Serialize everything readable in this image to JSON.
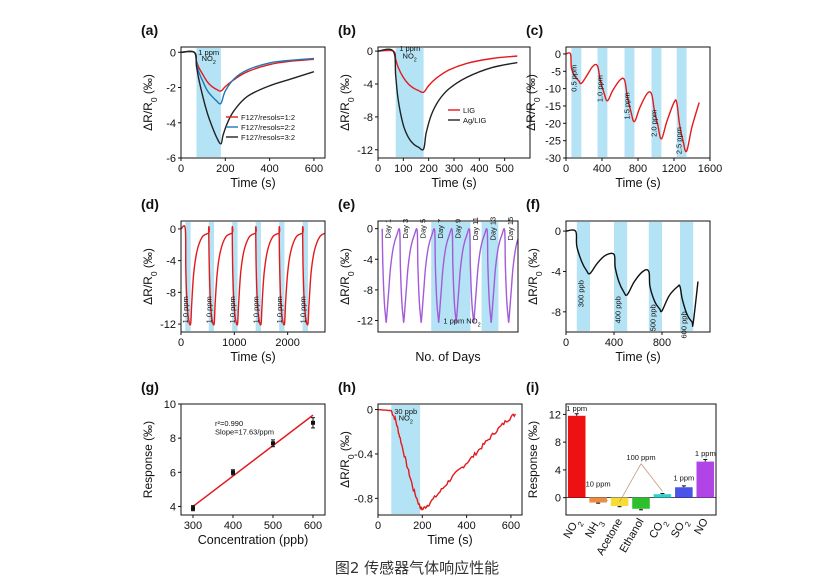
{
  "caption": "图2 传感器气体响应性能",
  "chart_data": [
    {
      "id": "a",
      "panel": "(a)",
      "type": "line",
      "xlabel": "Time (s)",
      "ylabel": "ΔR/R0 (‰)",
      "xlim": [
        0,
        650
      ],
      "ylim": [
        -6,
        0.3
      ],
      "xticks": [
        0,
        200,
        400,
        600
      ],
      "yticks": [
        -6,
        -4,
        -2,
        0
      ],
      "shades": [
        [
          70,
          180
        ]
      ],
      "annotations": [
        {
          "text": "1 ppm",
          "x": 125,
          "y": -0.15
        },
        {
          "text": "NO2",
          "x": 125,
          "y": -0.5
        }
      ],
      "legend": [
        "F127/resols=1:2",
        "F127/resols=2:2",
        "F127/resols=3:2"
      ],
      "legend_position": "lower-right",
      "series": [
        {
          "name": "F127/resols=1:2",
          "color": "#e31a1c",
          "x": [
            0,
            60,
            70,
            80,
            100,
            120,
            140,
            160,
            180,
            200,
            240,
            300,
            400,
            500,
            600
          ],
          "y": [
            0,
            0,
            -0.5,
            -0.85,
            -1.3,
            -1.7,
            -1.95,
            -2.1,
            -2.2,
            -1.95,
            -1.55,
            -1.1,
            -0.7,
            -0.5,
            -0.4
          ]
        },
        {
          "name": "F127/resols=2:2",
          "color": "#1f78b4",
          "x": [
            0,
            60,
            70,
            80,
            100,
            120,
            140,
            160,
            180,
            200,
            240,
            300,
            400,
            500,
            600
          ],
          "y": [
            0,
            0,
            -0.6,
            -1.1,
            -1.7,
            -2.2,
            -2.5,
            -2.75,
            -2.9,
            -2.2,
            -1.5,
            -1.0,
            -0.6,
            -0.45,
            -0.35
          ]
        },
        {
          "name": "F127/resols=3:2",
          "color": "#222222",
          "x": [
            0,
            60,
            70,
            80,
            100,
            120,
            140,
            160,
            180,
            190,
            210,
            240,
            300,
            400,
            500,
            600
          ],
          "y": [
            0,
            0,
            -0.8,
            -1.5,
            -2.6,
            -3.5,
            -4.2,
            -4.8,
            -5.2,
            -4.7,
            -4.0,
            -3.3,
            -2.5,
            -1.9,
            -1.5,
            -1.1
          ]
        }
      ]
    },
    {
      "id": "b",
      "panel": "(b)",
      "type": "line",
      "xlabel": "Time (s)",
      "ylabel": "ΔR/R0 (‰)",
      "xlim": [
        0,
        600
      ],
      "ylim": [
        -13,
        0.5
      ],
      "xticks": [
        0,
        100,
        200,
        300,
        400,
        500
      ],
      "yticks": [
        -12,
        -8,
        -4,
        0
      ],
      "shades": [
        [
          70,
          180
        ]
      ],
      "annotations": [
        {
          "text": "1 ppm",
          "x": 125,
          "y": 0
        },
        {
          "text": "NO2",
          "x": 125,
          "y": -0.9
        }
      ],
      "legend": [
        "LIG",
        "Ag/LIG"
      ],
      "legend_position": "center-right",
      "series": [
        {
          "name": "LIG",
          "color": "#e31a1c",
          "x": [
            0,
            60,
            70,
            80,
            100,
            120,
            140,
            160,
            180,
            200,
            230,
            280,
            350,
            450,
            550
          ],
          "y": [
            0,
            0,
            -1.0,
            -2.0,
            -3.2,
            -4.0,
            -4.5,
            -4.8,
            -5.0,
            -4.2,
            -3.3,
            -2.3,
            -1.5,
            -0.9,
            -0.6
          ]
        },
        {
          "name": "Ag/LIG",
          "color": "#222222",
          "x": [
            0,
            60,
            70,
            80,
            100,
            120,
            140,
            160,
            180,
            190,
            210,
            240,
            280,
            350,
            450,
            550
          ],
          "y": [
            0,
            0,
            -3.0,
            -6.0,
            -9.0,
            -10.5,
            -11.3,
            -11.7,
            -11.9,
            -10.0,
            -7.8,
            -6.0,
            -4.6,
            -3.2,
            -2.0,
            -1.4
          ]
        }
      ]
    },
    {
      "id": "c",
      "panel": "(c)",
      "type": "line",
      "xlabel": "Time (s)",
      "ylabel": "ΔR/R0 (‰)",
      "xlim": [
        0,
        1600
      ],
      "ylim": [
        -30,
        2
      ],
      "xticks": [
        0,
        400,
        800,
        1200,
        1600
      ],
      "yticks": [
        -30,
        -25,
        -20,
        -15,
        -10,
        -5,
        0
      ],
      "shades": [
        [
          60,
          170
        ],
        [
          350,
          460
        ],
        [
          650,
          760
        ],
        [
          950,
          1060
        ],
        [
          1230,
          1340
        ]
      ],
      "annotations": [
        {
          "text": "0.5 ppm",
          "x": 115,
          "y": -7,
          "rotate": -90
        },
        {
          "text": "1.0 ppm",
          "x": 405,
          "y": -10,
          "rotate": -90
        },
        {
          "text": "1.5 ppm",
          "x": 705,
          "y": -15,
          "rotate": -90
        },
        {
          "text": "2.0 ppm",
          "x": 1005,
          "y": -20,
          "rotate": -90
        },
        {
          "text": "2.5 ppm",
          "x": 1285,
          "y": -25,
          "rotate": -90
        }
      ],
      "series": [
        {
          "name": "response",
          "color": "#e31a1c",
          "x": [
            0,
            50,
            60,
            100,
            140,
            170,
            230,
            300,
            350,
            380,
            420,
            460,
            520,
            600,
            650,
            680,
            720,
            760,
            820,
            900,
            950,
            980,
            1020,
            1060,
            1120,
            1200,
            1230,
            1260,
            1300,
            1340,
            1400,
            1480
          ],
          "y": [
            0,
            0,
            -4,
            -6.5,
            -7.7,
            -8.5,
            -6.3,
            -3.5,
            -3.5,
            -7.5,
            -11,
            -13.5,
            -10.5,
            -7.5,
            -7.5,
            -12,
            -16.5,
            -19.5,
            -15.5,
            -11.5,
            -11.5,
            -16,
            -20.5,
            -24.5,
            -19.5,
            -14,
            -14,
            -20,
            -25,
            -28,
            -21,
            -14
          ]
        }
      ]
    },
    {
      "id": "d",
      "panel": "(d)",
      "type": "line",
      "xlabel": "Time (s)",
      "ylabel": "ΔR/R0 (‰)",
      "xlim": [
        0,
        2700
      ],
      "ylim": [
        -13,
        1
      ],
      "xticks": [
        0,
        1000,
        2000
      ],
      "yticks": [
        -12,
        -8,
        -4,
        0
      ],
      "shades": [
        [
          80,
          180
        ],
        [
          520,
          620
        ],
        [
          960,
          1060
        ],
        [
          1400,
          1500
        ],
        [
          1840,
          1940
        ],
        [
          2280,
          2380
        ]
      ],
      "annotations": [
        {
          "text": "1.0 ppm",
          "x": 130,
          "y": -10.2,
          "rotate": -90
        },
        {
          "text": "1.0 ppm",
          "x": 570,
          "y": -10.2,
          "rotate": -90
        },
        {
          "text": "1.0 ppm",
          "x": 1010,
          "y": -10.2,
          "rotate": -90
        },
        {
          "text": "1.0 ppm",
          "x": 1450,
          "y": -10.2,
          "rotate": -90
        },
        {
          "text": "1.0 ppm",
          "x": 1890,
          "y": -10.2,
          "rotate": -90
        },
        {
          "text": "1.0 ppm",
          "x": 2330,
          "y": -10.2,
          "rotate": -90
        }
      ],
      "series": [
        {
          "name": "response",
          "color": "#e31a1c",
          "pattern": "repeat",
          "cycles": 6,
          "period": 440,
          "start": 80,
          "x": [
            0,
            80,
            90,
            110,
            140,
            180,
            200,
            240,
            300,
            400,
            520
          ],
          "y": [
            0,
            0,
            -5,
            -9,
            -11.3,
            -12,
            -9.5,
            -5.5,
            -2.8,
            -1.0,
            -0.5
          ]
        }
      ]
    },
    {
      "id": "e",
      "panel": "(e)",
      "type": "line",
      "xlabel": "No. of Days",
      "ylabel": "ΔR/R0 (‰)",
      "xlim": [
        0,
        1
      ],
      "ylim": [
        -13.5,
        1
      ],
      "xticks": [],
      "yticks": [
        -12,
        -8,
        -4,
        0
      ],
      "annotations": [
        {
          "text": "Day 1",
          "x": 0.09,
          "y": 0,
          "rotate": -90
        },
        {
          "text": "Day 3",
          "x": 0.215,
          "y": 0,
          "rotate": -90
        },
        {
          "text": "Day 5",
          "x": 0.34,
          "y": 0,
          "rotate": -90
        },
        {
          "text": "Day 7",
          "x": 0.465,
          "y": 0,
          "rotate": -90
        },
        {
          "text": "Day 9",
          "x": 0.59,
          "y": 0,
          "rotate": -90
        },
        {
          "text": "Day 11",
          "x": 0.715,
          "y": 0,
          "rotate": -90
        },
        {
          "text": "Day 13",
          "x": 0.84,
          "y": 0,
          "rotate": -90
        },
        {
          "text": "Day 15",
          "x": 0.965,
          "y": 0,
          "rotate": -90
        },
        {
          "text": "1 ppm NO2",
          "x": 0.6,
          "y": -12.4
        }
      ],
      "shades": [
        [
          0.38,
          0.52
        ],
        [
          0.52,
          0.66
        ],
        [
          0.74,
          0.86
        ]
      ],
      "series": [
        {
          "name": "response",
          "color": "#a35bd8",
          "pattern": "repeat",
          "cycles": 8,
          "period": 0.125,
          "start": 0.03,
          "x": [
            0.03,
            0.035,
            0.045,
            0.055,
            0.06,
            0.075,
            0.09,
            0.11,
            0.135,
            0.155
          ],
          "y": [
            0,
            -5,
            -9.5,
            -11.6,
            -12,
            -8.5,
            -5,
            -2.4,
            -0.8,
            -0.3
          ]
        }
      ]
    },
    {
      "id": "f",
      "panel": "(f)",
      "type": "line",
      "xlabel": "Time (s)",
      "ylabel": "ΔR/R0 (‰)",
      "xlim": [
        0,
        1200
      ],
      "ylim": [
        -10,
        1
      ],
      "xticks": [
        0,
        400,
        800
      ],
      "yticks": [
        -8,
        -4,
        0
      ],
      "shades": [
        [
          90,
          200
        ],
        [
          400,
          510
        ],
        [
          690,
          800
        ],
        [
          950,
          1060
        ]
      ],
      "annotations": [
        {
          "text": "300 ppb",
          "x": 145,
          "y": -6.2,
          "rotate": -90
        },
        {
          "text": "400 ppb",
          "x": 455,
          "y": -7.8,
          "rotate": -90
        },
        {
          "text": "500 ppb",
          "x": 745,
          "y": -8.6,
          "rotate": -90
        },
        {
          "text": "600 ppb",
          "x": 1005,
          "y": -9.3,
          "rotate": -90
        }
      ],
      "series": [
        {
          "name": "response",
          "color": "#111111",
          "x": [
            0,
            80,
            90,
            130,
            170,
            200,
            260,
            330,
            400,
            410,
            440,
            480,
            510,
            570,
            640,
            690,
            700,
            740,
            780,
            800,
            860,
            930,
            950,
            970,
            1010,
            1050,
            1060,
            1100
          ],
          "y": [
            0,
            0,
            -1.5,
            -3.0,
            -3.9,
            -4.2,
            -3.2,
            -2.4,
            -2.3,
            -3.6,
            -5.0,
            -6.0,
            -6.3,
            -5.0,
            -4.0,
            -4.0,
            -5.5,
            -7.0,
            -7.7,
            -7.9,
            -6.4,
            -5.5,
            -5.5,
            -6.8,
            -8.3,
            -9.0,
            -9.1,
            -5.0
          ]
        }
      ]
    },
    {
      "id": "g",
      "panel": "(g)",
      "type": "scatter",
      "xlabel": "Concentration (ppb)",
      "ylabel": "Response (‰)",
      "xlim": [
        270,
        630
      ],
      "ylim": [
        3.5,
        10
      ],
      "xticks": [
        300,
        400,
        500,
        600
      ],
      "yticks": [
        4,
        6,
        8,
        10
      ],
      "points": [
        {
          "x": 300,
          "y": 3.9,
          "err": 0.15
        },
        {
          "x": 400,
          "y": 6.0,
          "err": 0.15
        },
        {
          "x": 500,
          "y": 7.7,
          "err": 0.2
        },
        {
          "x": 600,
          "y": 8.9,
          "err": 0.3
        }
      ],
      "fit": {
        "x": [
          300,
          600
        ],
        "y": [
          4.0,
          9.35
        ],
        "color": "#e31a1c"
      },
      "annotations": [
        {
          "text": "r²=0.990",
          "x": 355,
          "y": 8.7
        },
        {
          "text": "Slope=17.63/ppm",
          "x": 355,
          "y": 8.2
        }
      ]
    },
    {
      "id": "h",
      "panel": "(h)",
      "type": "line",
      "xlabel": "Time (s)",
      "ylabel": "ΔR/R0 (‰)",
      "xlim": [
        0,
        650
      ],
      "ylim": [
        -0.95,
        0.05
      ],
      "xticks": [
        0,
        200,
        400,
        600
      ],
      "yticks": [
        -0.8,
        -0.4,
        0
      ],
      "shades": [
        [
          60,
          190
        ]
      ],
      "annotations": [
        {
          "text": "30 ppb",
          "x": 125,
          "y": -0.04
        },
        {
          "text": "NO2",
          "x": 125,
          "y": -0.1
        }
      ],
      "series": [
        {
          "name": "response",
          "color": "#e31a1c",
          "noise": true,
          "x": [
            0,
            60,
            80,
            100,
            130,
            160,
            190,
            200,
            230,
            280,
            330,
            380,
            430,
            480,
            530,
            580,
            620
          ],
          "y": [
            0,
            -0.01,
            -0.1,
            -0.26,
            -0.5,
            -0.72,
            -0.88,
            -0.9,
            -0.85,
            -0.74,
            -0.62,
            -0.52,
            -0.42,
            -0.31,
            -0.2,
            -0.1,
            -0.04
          ]
        }
      ]
    },
    {
      "id": "i",
      "panel": "(i)",
      "type": "bar",
      "xlabel": "",
      "ylabel": "Response (‰)",
      "ylim": [
        -2.5,
        13.5
      ],
      "yticks": [
        0,
        4,
        8,
        12
      ],
      "categories": [
        "NO2",
        "NH3",
        "Acetone",
        "Ethanol",
        "CO2",
        "SO2",
        "NO"
      ],
      "values": [
        11.8,
        -0.7,
        -1.2,
        -1.6,
        0.5,
        1.5,
        5.2
      ],
      "errors": [
        0.3,
        0.1,
        0.1,
        0.15,
        0.1,
        0.2,
        0.3
      ],
      "colors": [
        "#ee1111",
        "#f08a3c",
        "#f7dc33",
        "#2cc02c",
        "#33d0d0",
        "#4a55e8",
        "#b044e6"
      ],
      "bar_labels": [
        {
          "text": "1 ppm",
          "x": 0,
          "y": 12.5
        },
        {
          "text": "10 ppm",
          "x": 1,
          "y": 1.6
        },
        {
          "text": "100 ppm",
          "x": 3,
          "y": 5.4
        },
        {
          "text": "1 ppm",
          "x": 5,
          "y": 2.5
        },
        {
          "text": "1 ppm",
          "x": 6,
          "y": 6.0
        }
      ]
    }
  ]
}
